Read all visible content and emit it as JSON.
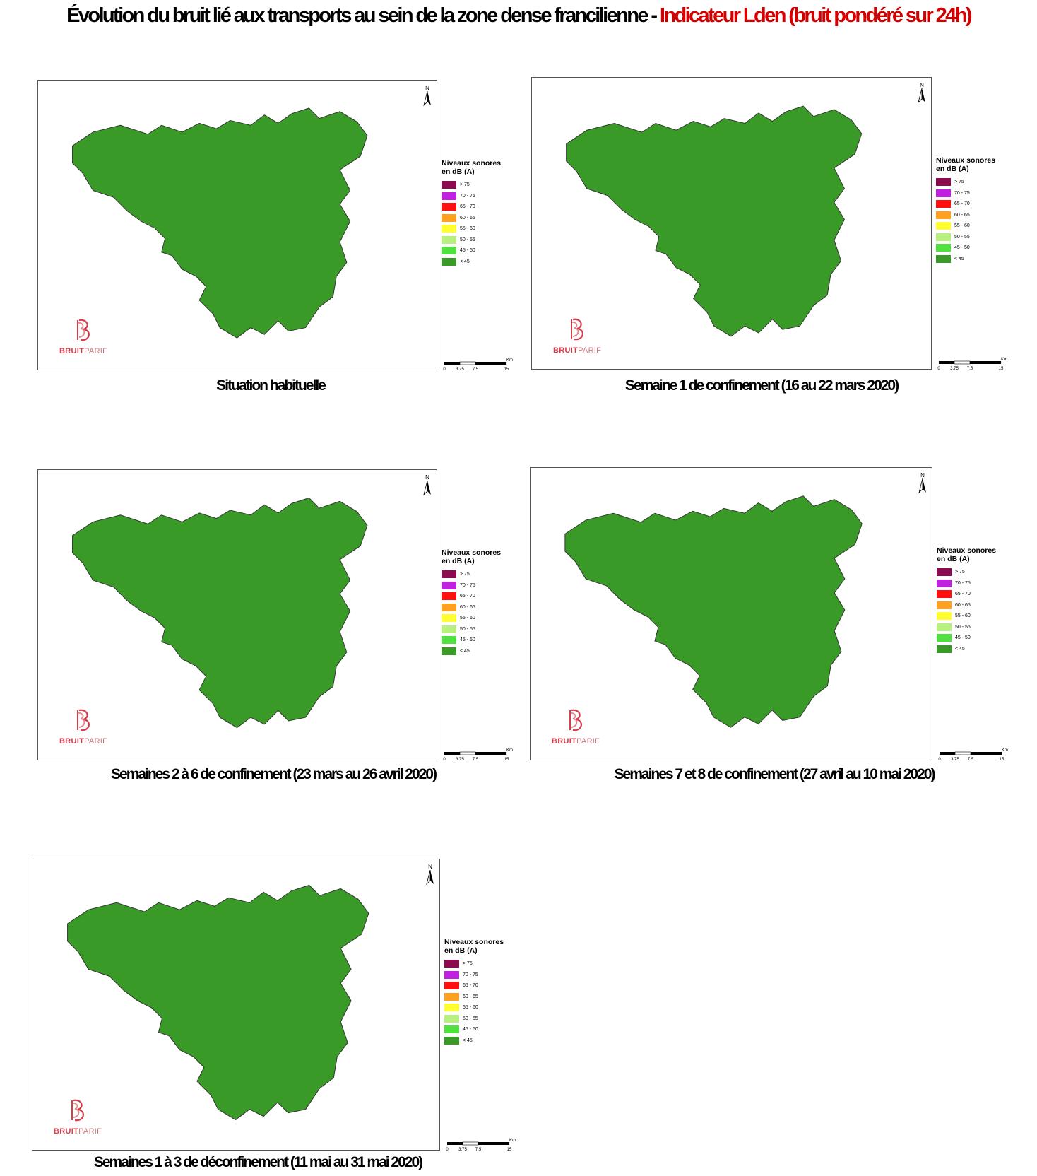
{
  "title": {
    "main": "Évolution du bruit lié aux transports au sein de la zone dense francilienne - ",
    "highlight": "Indicateur Lden (bruit pondéré sur 24h)"
  },
  "legend": {
    "title_line1": "Niveaux sonores",
    "title_line2": "en dB (A)",
    "classes": [
      {
        "label": "> 75",
        "color": "#8b0a50"
      },
      {
        "label": "70 - 75",
        "color": "#c020e0"
      },
      {
        "label": "65 - 70",
        "color": "#ff1010"
      },
      {
        "label": "60 - 65",
        "color": "#ffa020"
      },
      {
        "label": "55 - 60",
        "color": "#ffff30"
      },
      {
        "label": "50 - 55",
        "color": "#b8f080"
      },
      {
        "label": "45 - 50",
        "color": "#50e040"
      },
      {
        "label": "< 45",
        "color": "#3a9a28"
      }
    ]
  },
  "north_label": "N",
  "scale": {
    "ticks": [
      "0",
      "3.75",
      "7.5",
      "15"
    ],
    "unit": "Km"
  },
  "logo": {
    "part1": "BRUIT",
    "part2": "PARIF"
  },
  "maps": [
    {
      "caption": "Situation habituelle",
      "intensity": 1.0
    },
    {
      "caption": "Semaine 1 de confinement (16 au 22 mars 2020)",
      "intensity": 0.3
    },
    {
      "caption": "Semaines 2 à 6 de confinement (23 mars au 26 avril 2020)",
      "intensity": 0.25
    },
    {
      "caption": "Semaines 7 et 8 de confinement (27 avril au 10 mai 2020)",
      "intensity": 0.5
    },
    {
      "caption": "Semaines 1 à 3 de déconfinement (11 mai au 31 mai 2020)",
      "intensity": 0.8
    }
  ]
}
